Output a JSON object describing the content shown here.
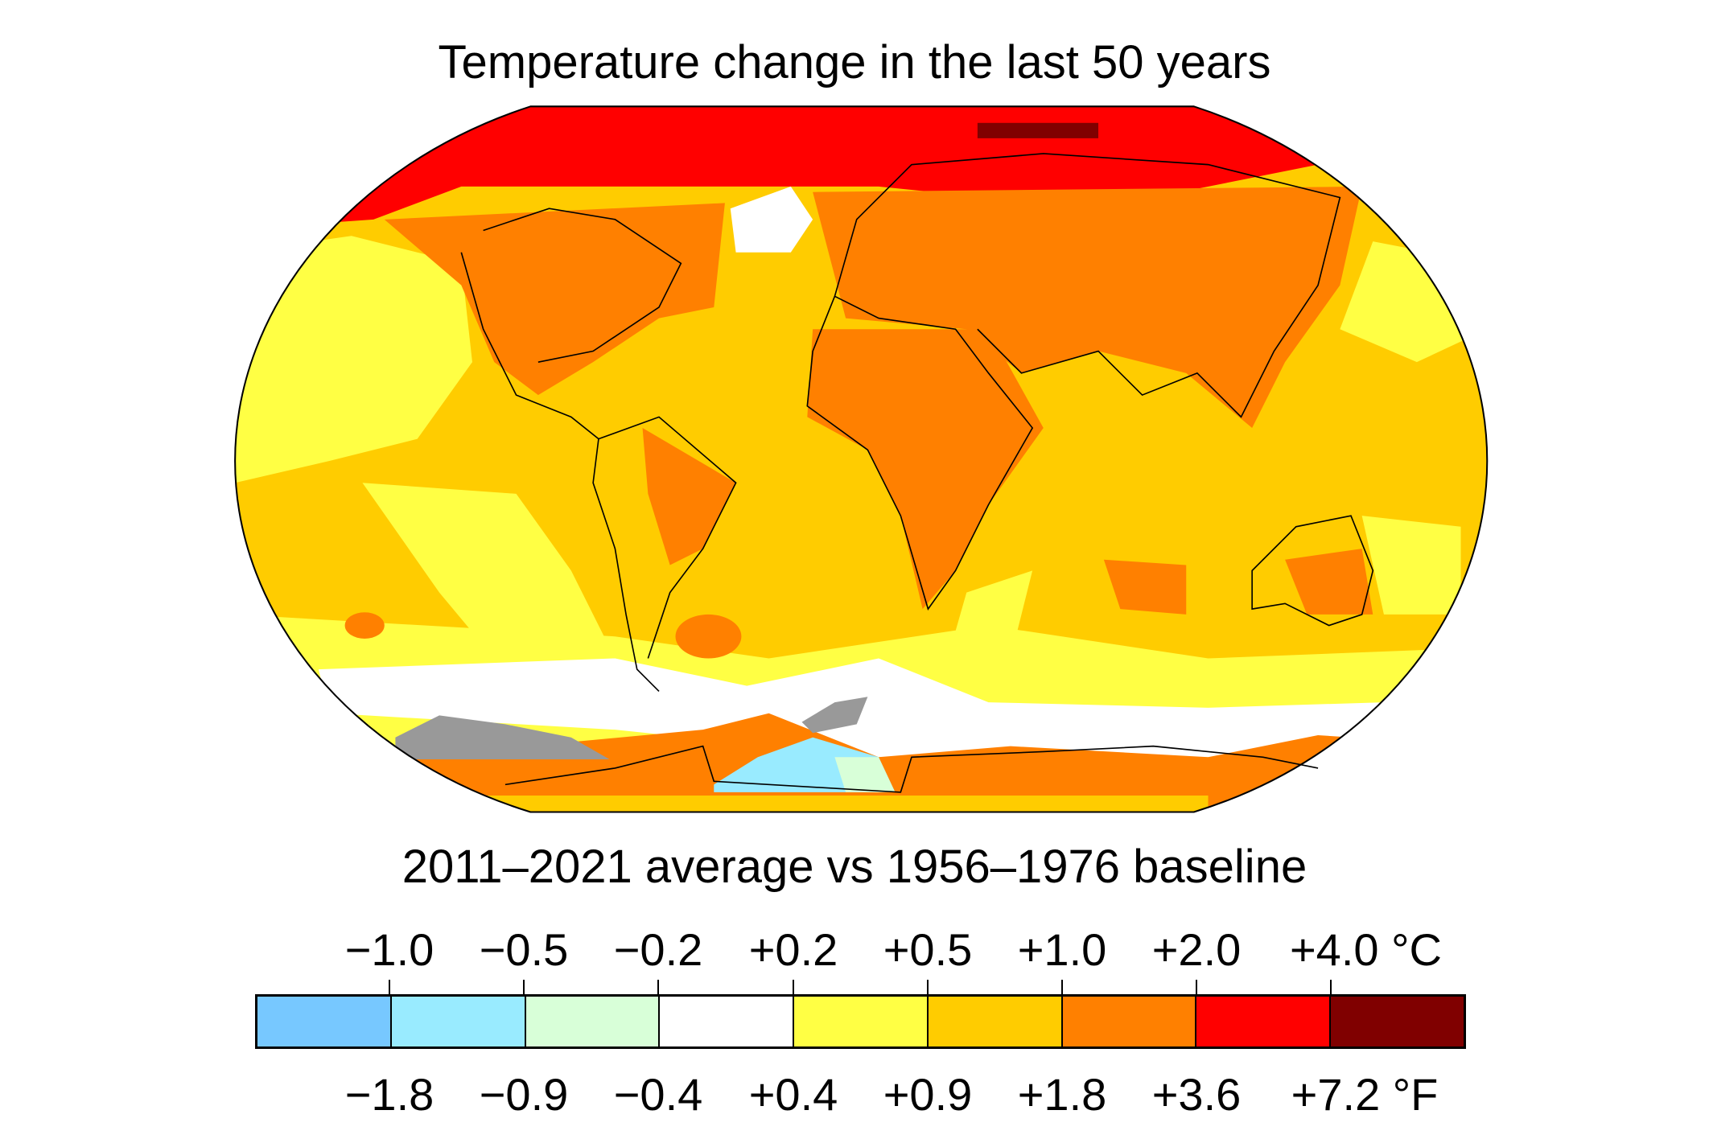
{
  "title": "Temperature change in the last 50 years",
  "subtitle": "2011–2021 average vs 1956–1976 baseline",
  "legend": {
    "celsius_labels": [
      "−1.0",
      "−0.5",
      "−0.2",
      "+0.2",
      "+0.5",
      "+1.0",
      "+2.0",
      "+4.0 °C"
    ],
    "fahrenheit_labels": [
      "−1.8",
      "−0.9",
      "−0.4",
      "+0.4",
      "+0.9",
      "+1.8",
      "+3.6",
      "+7.2 °F"
    ],
    "colors": [
      "#77c8ff",
      "#99ebff",
      "#d8ffd8",
      "#ffffff",
      "#ffff44",
      "#ffcc00",
      "#ff8000",
      "#ff0000",
      "#800000"
    ]
  },
  "map": {
    "no_data_color": "#999999",
    "ocean_base_color": "#ffcc00"
  }
}
